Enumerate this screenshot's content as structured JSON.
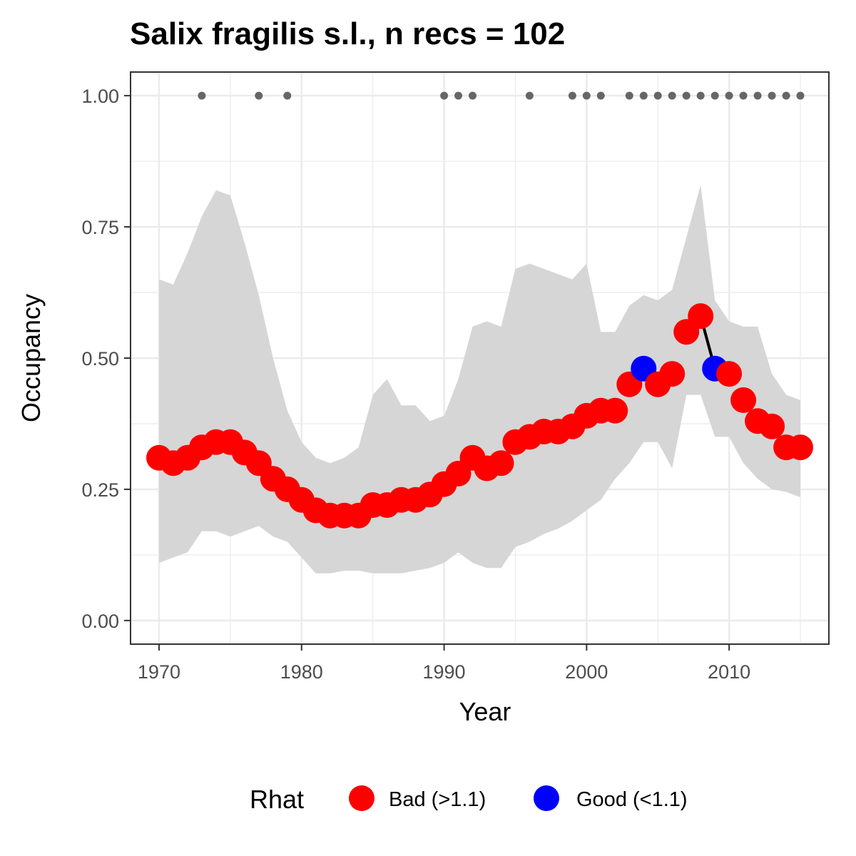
{
  "chart_data": {
    "type": "line",
    "title": "Salix fragilis s.l., n recs = 102",
    "xlabel": "Year",
    "ylabel": "Occupancy",
    "xlim": [
      1968,
      2017
    ],
    "ylim": [
      -0.045,
      1.045
    ],
    "x_ticks": [
      1970,
      1980,
      1990,
      2000,
      2010
    ],
    "x_tick_labels": [
      "1970",
      "1980",
      "1990",
      "2000",
      "2010"
    ],
    "y_ticks": [
      0,
      0.25,
      0.5,
      0.75,
      1
    ],
    "y_tick_labels": [
      "0.00",
      "0.25",
      "0.50",
      "0.75",
      "1.00"
    ],
    "grid": true,
    "legend": {
      "title": "Rhat",
      "position": "bottom",
      "entries": [
        {
          "label": "Bad (>1.1)",
          "color": "#ff0000"
        },
        {
          "label": "Good (<1.1)",
          "color": "#0000ff"
        }
      ]
    },
    "colors": {
      "bad": "#ff0000",
      "good": "#0000ff",
      "ribbon": "#d6d6d6",
      "record_dots": "#666666",
      "line": "#000000"
    },
    "series": [
      {
        "years": [
          1970,
          1971,
          1972,
          1973,
          1974,
          1975,
          1976,
          1977,
          1978,
          1979,
          1980,
          1981,
          1982,
          1983,
          1984,
          1985,
          1986,
          1987,
          1988,
          1989,
          1990,
          1991,
          1992,
          1993,
          1994,
          1995,
          1996,
          1997,
          1998,
          1999,
          2000,
          2001,
          2002,
          2003,
          2004,
          2005,
          2006,
          2007,
          2008,
          2009,
          2010,
          2011,
          2012,
          2013,
          2014,
          2015
        ],
        "occupancy": [
          0.31,
          0.3,
          0.31,
          0.33,
          0.34,
          0.34,
          0.32,
          0.3,
          0.27,
          0.25,
          0.23,
          0.21,
          0.2,
          0.2,
          0.2,
          0.22,
          0.22,
          0.23,
          0.23,
          0.24,
          0.26,
          0.28,
          0.31,
          0.29,
          0.3,
          0.34,
          0.35,
          0.36,
          0.36,
          0.37,
          0.39,
          0.4,
          0.4,
          0.45,
          0.48,
          0.45,
          0.47,
          0.55,
          0.58,
          0.48,
          0.47,
          0.42,
          0.38,
          0.37,
          0.33,
          0.33
        ],
        "lower": [
          0.11,
          0.12,
          0.13,
          0.17,
          0.17,
          0.16,
          0.17,
          0.18,
          0.16,
          0.15,
          0.12,
          0.09,
          0.09,
          0.095,
          0.095,
          0.09,
          0.09,
          0.09,
          0.095,
          0.1,
          0.11,
          0.13,
          0.11,
          0.1,
          0.1,
          0.14,
          0.15,
          0.165,
          0.175,
          0.19,
          0.21,
          0.23,
          0.27,
          0.3,
          0.34,
          0.34,
          0.29,
          0.43,
          0.43,
          0.35,
          0.35,
          0.3,
          0.27,
          0.25,
          0.245,
          0.235
        ],
        "upper": [
          0.65,
          0.64,
          0.7,
          0.77,
          0.82,
          0.81,
          0.72,
          0.62,
          0.5,
          0.4,
          0.34,
          0.31,
          0.3,
          0.31,
          0.33,
          0.43,
          0.46,
          0.41,
          0.41,
          0.38,
          0.39,
          0.46,
          0.56,
          0.57,
          0.56,
          0.67,
          0.68,
          0.67,
          0.66,
          0.65,
          0.68,
          0.55,
          0.55,
          0.6,
          0.62,
          0.61,
          0.63,
          0.73,
          0.83,
          0.61,
          0.57,
          0.56,
          0.56,
          0.47,
          0.43,
          0.42
        ],
        "rhat": [
          "bad",
          "bad",
          "bad",
          "bad",
          "bad",
          "bad",
          "bad",
          "bad",
          "bad",
          "bad",
          "bad",
          "bad",
          "bad",
          "bad",
          "bad",
          "bad",
          "bad",
          "bad",
          "bad",
          "bad",
          "bad",
          "bad",
          "bad",
          "bad",
          "bad",
          "bad",
          "bad",
          "bad",
          "bad",
          "bad",
          "bad",
          "bad",
          "bad",
          "bad",
          "good",
          "bad",
          "bad",
          "bad",
          "bad",
          "good",
          "bad",
          "bad",
          "bad",
          "bad",
          "bad",
          "bad"
        ]
      }
    ],
    "record_years": [
      1973,
      1977,
      1979,
      1990,
      1991,
      1992,
      1996,
      1999,
      2000,
      2001,
      2003,
      2004,
      2005,
      2006,
      2007,
      2008,
      2009,
      2010,
      2011,
      2012,
      2013,
      2014,
      2015
    ],
    "record_value": 1.0
  }
}
